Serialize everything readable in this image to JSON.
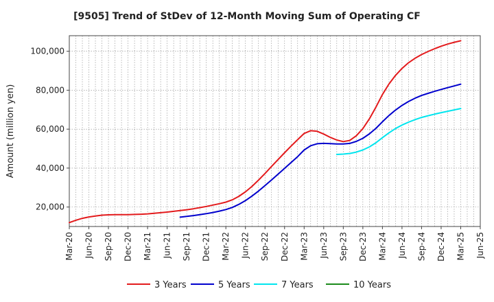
{
  "chart_data": {
    "type": "line",
    "title": "[9505]  Trend of StDev of 12-Month Moving Sum of Operating CF",
    "xlabel": "",
    "ylabel": "Amount (million yen)",
    "ylim": [
      10000,
      108000
    ],
    "yticks": [
      20000,
      40000,
      60000,
      80000,
      100000
    ],
    "ytick_labels": [
      "20,000",
      "40,000",
      "60,000",
      "80,000",
      "100,000"
    ],
    "xlim": [
      "2020-03",
      "2025-06"
    ],
    "x_tick_labels": [
      "Mar-20",
      "Jun-20",
      "Sep-20",
      "Dec-20",
      "Mar-21",
      "Jun-21",
      "Sep-21",
      "Dec-21",
      "Mar-22",
      "Jun-22",
      "Sep-22",
      "Dec-22",
      "Mar-23",
      "Jun-23",
      "Sep-23",
      "Dec-23",
      "Mar-24",
      "Jun-24",
      "Sep-24",
      "Dec-24",
      "Mar-25",
      "Jun-25"
    ],
    "grid": true,
    "legend_position": "bottom",
    "series": [
      {
        "name": "3 Years",
        "color": "#e31a1c",
        "x": [
          "2020-03",
          "2020-04",
          "2020-05",
          "2020-06",
          "2020-07",
          "2020-08",
          "2020-09",
          "2020-10",
          "2020-11",
          "2020-12",
          "2021-01",
          "2021-02",
          "2021-03",
          "2021-04",
          "2021-05",
          "2021-06",
          "2021-07",
          "2021-08",
          "2021-09",
          "2021-10",
          "2021-11",
          "2021-12",
          "2022-01",
          "2022-02",
          "2022-03",
          "2022-04",
          "2022-05",
          "2022-06",
          "2022-07",
          "2022-08",
          "2022-09",
          "2022-10",
          "2022-11",
          "2022-12",
          "2023-01",
          "2023-02",
          "2023-03",
          "2023-04",
          "2023-05",
          "2023-06",
          "2023-07",
          "2023-08",
          "2023-09",
          "2023-10",
          "2023-11",
          "2023-12",
          "2024-01",
          "2024-02",
          "2024-03",
          "2024-04",
          "2024-05",
          "2024-06",
          "2024-07",
          "2024-08",
          "2024-09",
          "2024-10",
          "2024-11",
          "2024-12",
          "2025-01",
          "2025-02",
          "2025-03"
        ],
        "values": [
          12000,
          13200,
          14200,
          14900,
          15400,
          15800,
          16000,
          16100,
          16100,
          16100,
          16200,
          16300,
          16500,
          16800,
          17100,
          17400,
          17800,
          18200,
          18600,
          19100,
          19700,
          20300,
          21000,
          21700,
          22500,
          23700,
          25500,
          27800,
          30600,
          33800,
          37200,
          40800,
          44400,
          47900,
          51300,
          54600,
          57800,
          59200,
          58900,
          57500,
          55800,
          54400,
          53600,
          54200,
          56600,
          60300,
          65300,
          71300,
          77800,
          83200,
          87600,
          91200,
          94100,
          96400,
          98300,
          99900,
          101300,
          102600,
          103700,
          104600,
          105400
        ]
      },
      {
        "name": "5 Years",
        "color": "#0000cd",
        "x": [
          "2021-08",
          "2021-09",
          "2021-10",
          "2021-11",
          "2021-12",
          "2022-01",
          "2022-02",
          "2022-03",
          "2022-04",
          "2022-05",
          "2022-06",
          "2022-07",
          "2022-08",
          "2022-09",
          "2022-10",
          "2022-11",
          "2022-12",
          "2023-01",
          "2023-02",
          "2023-03",
          "2023-04",
          "2023-05",
          "2023-06",
          "2023-07",
          "2023-08",
          "2023-09",
          "2023-10",
          "2023-11",
          "2023-12",
          "2024-01",
          "2024-02",
          "2024-03",
          "2024-04",
          "2024-05",
          "2024-06",
          "2024-07",
          "2024-08",
          "2024-09",
          "2024-10",
          "2024-11",
          "2024-12",
          "2025-01",
          "2025-02",
          "2025-03"
        ],
        "values": [
          14800,
          15200,
          15600,
          16100,
          16600,
          17200,
          17900,
          18700,
          19800,
          21400,
          23300,
          25600,
          28200,
          31000,
          33900,
          36900,
          39900,
          42900,
          45900,
          49300,
          51500,
          52500,
          52700,
          52600,
          52400,
          52400,
          52700,
          53700,
          55300,
          57600,
          60400,
          63800,
          67000,
          69800,
          72200,
          74200,
          75900,
          77300,
          78400,
          79400,
          80400,
          81300,
          82200,
          83100
        ]
      },
      {
        "name": "7 Years",
        "color": "#00e5ee",
        "x": [
          "2023-08",
          "2023-09",
          "2023-10",
          "2023-11",
          "2023-12",
          "2024-01",
          "2024-02",
          "2024-03",
          "2024-04",
          "2024-05",
          "2024-06",
          "2024-07",
          "2024-08",
          "2024-09",
          "2024-10",
          "2024-11",
          "2024-12",
          "2025-01",
          "2025-02",
          "2025-03"
        ],
        "values": [
          47000,
          47200,
          47500,
          48200,
          49300,
          50900,
          53000,
          55600,
          58100,
          60300,
          62100,
          63600,
          64900,
          66000,
          66900,
          67700,
          68500,
          69200,
          69900,
          70600
        ]
      },
      {
        "name": "10 Years",
        "color": "#1a8a1a",
        "x": [],
        "values": []
      }
    ]
  }
}
